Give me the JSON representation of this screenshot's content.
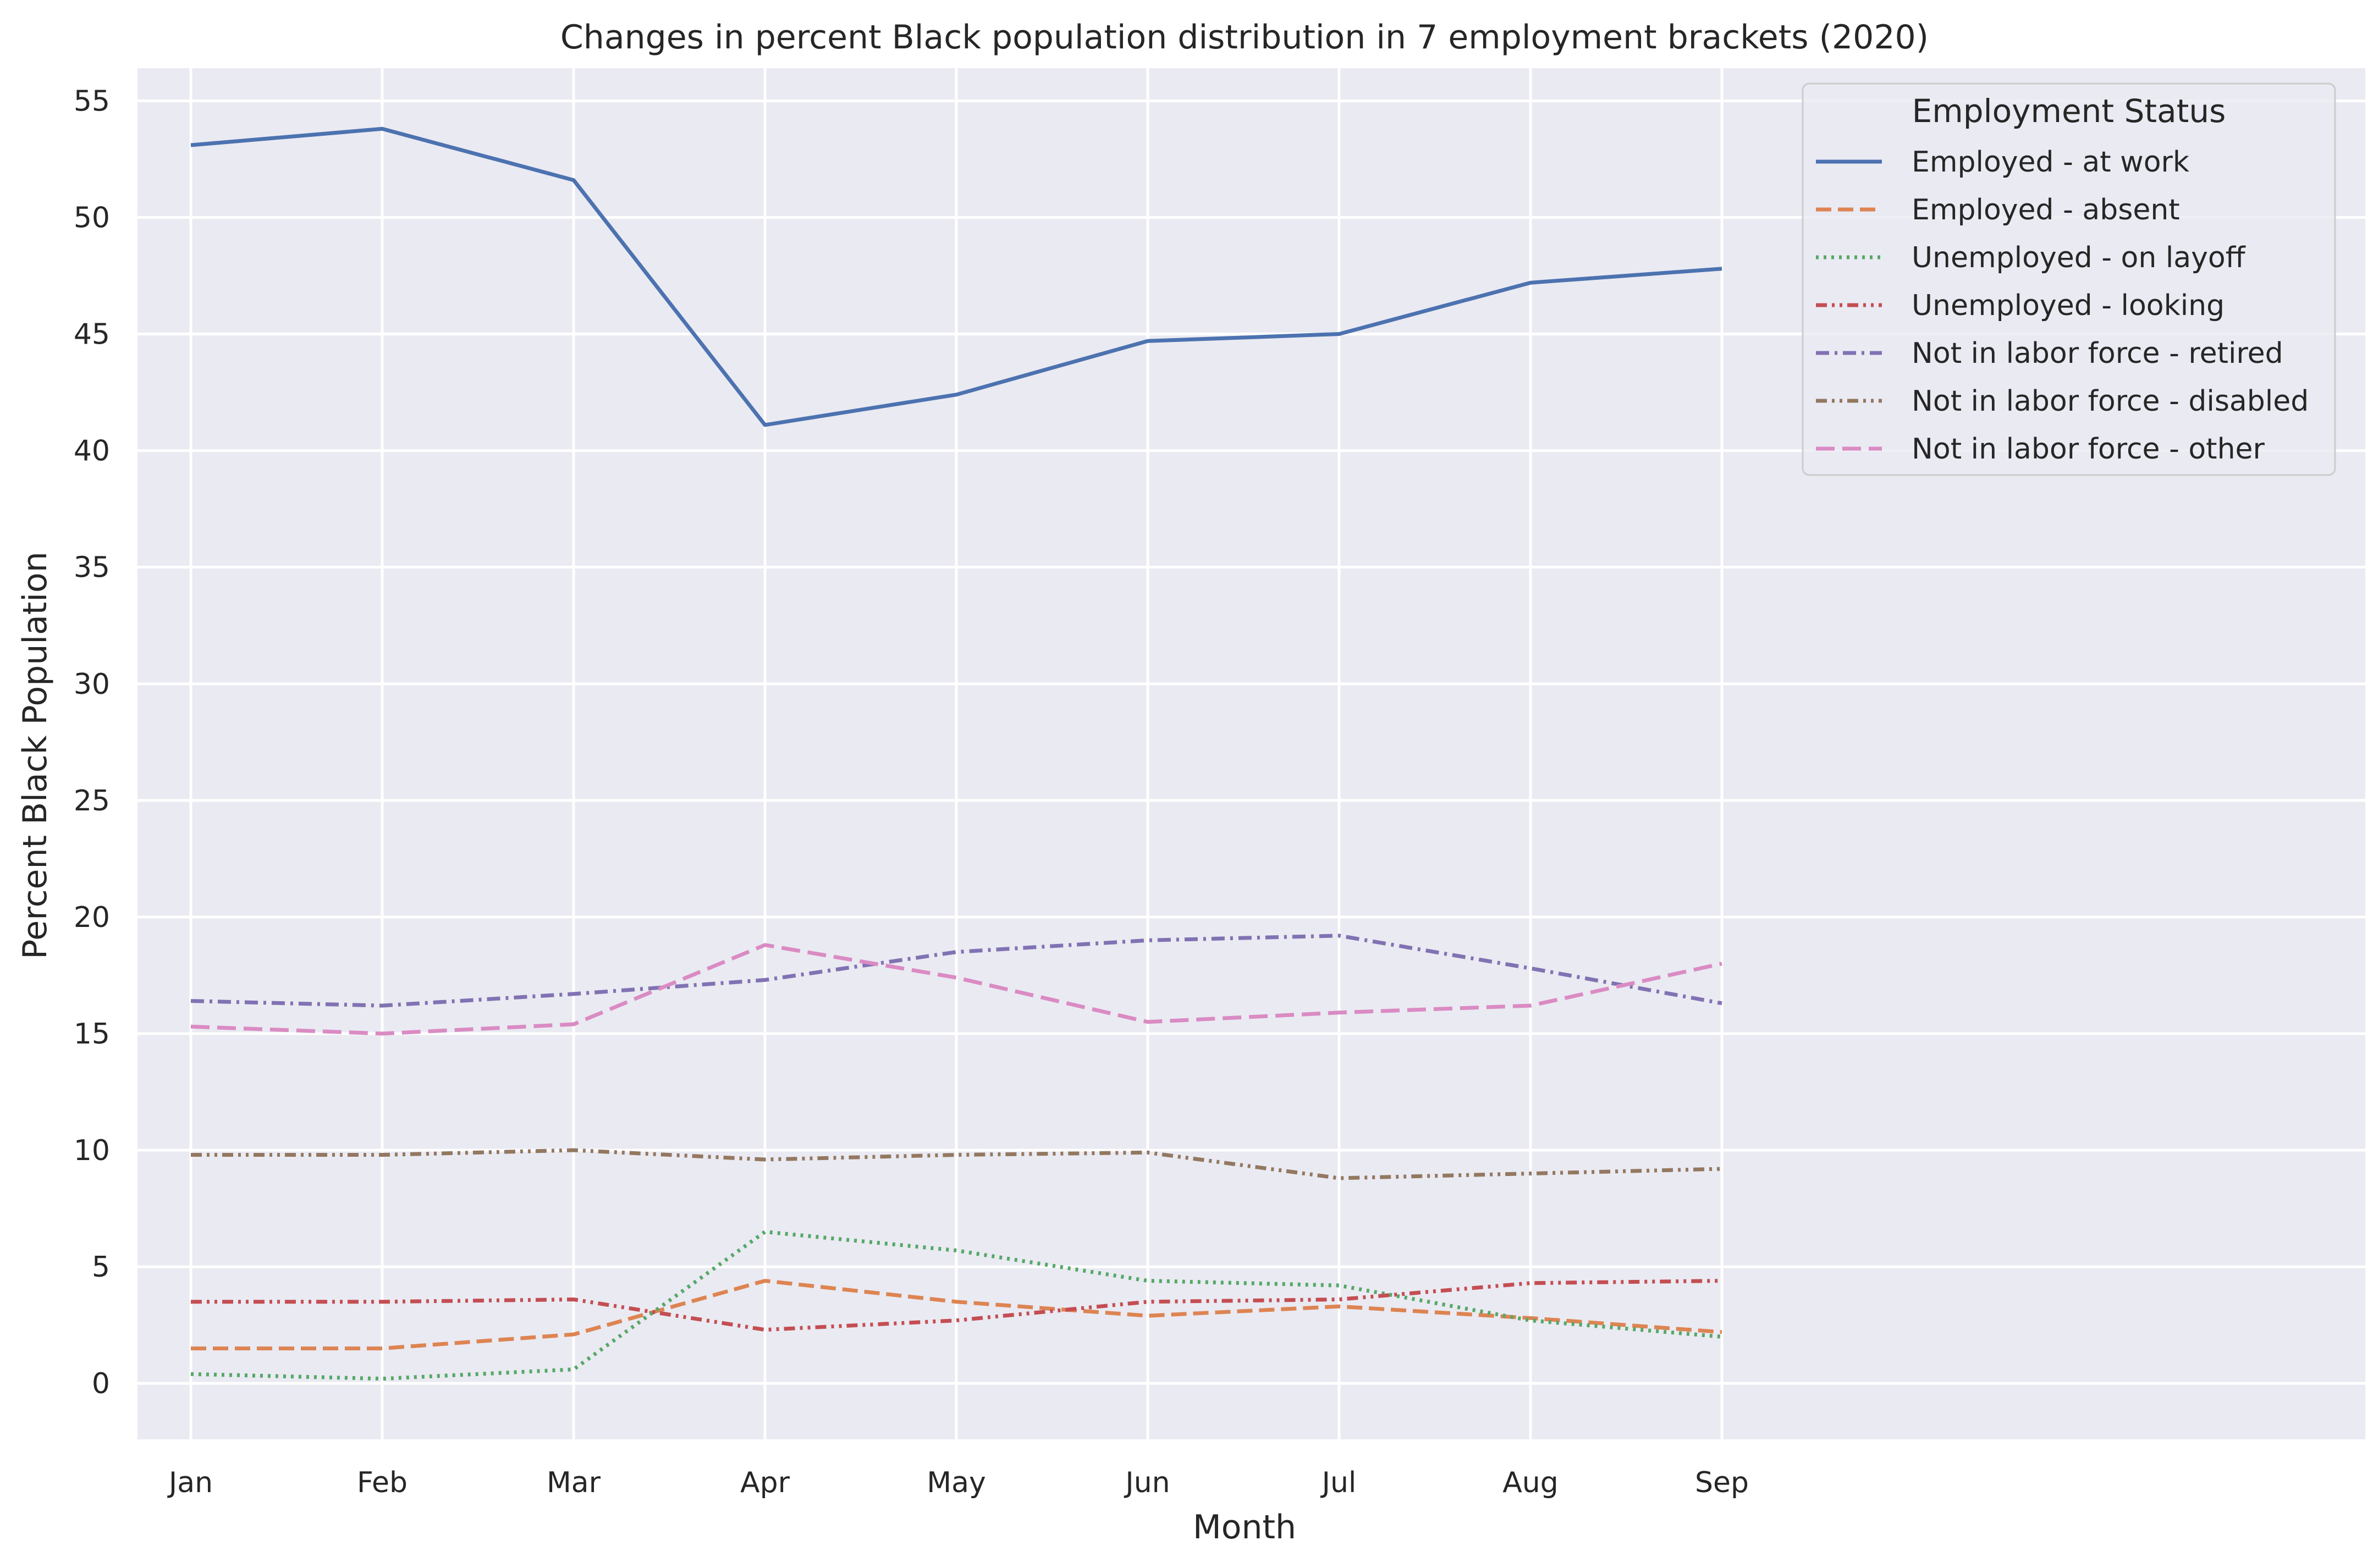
{
  "chart_data": {
    "type": "line",
    "title": "Changes in percent Black population distribution in 7 employment brackets (2020)",
    "xlabel": "Month",
    "ylabel": "Percent Black Population",
    "categories": [
      "Jan",
      "Feb",
      "Mar",
      "Apr",
      "May",
      "Jun",
      "Jul",
      "Aug",
      "Sep"
    ],
    "ylim": [
      -2.4,
      56.4
    ],
    "yticks": [
      0,
      5,
      10,
      15,
      20,
      25,
      30,
      35,
      40,
      45,
      50,
      55
    ],
    "yticks_labels": [
      "0",
      "5",
      "10",
      "15",
      "20",
      "25",
      "30",
      "35",
      "40",
      "45",
      "50",
      "55"
    ],
    "grid": true,
    "legend": {
      "title": "Employment Status",
      "placement": "top-right"
    },
    "series": [
      {
        "name": "Employed - at work",
        "color": "#4c72b0",
        "dash": "solid",
        "values": [
          53.1,
          53.8,
          51.6,
          41.1,
          42.4,
          44.7,
          45.0,
          47.2,
          47.8
        ]
      },
      {
        "name": "Employed - absent",
        "color": "#dd8452",
        "dash": "dashed",
        "values": [
          1.5,
          1.5,
          2.1,
          4.4,
          3.5,
          2.9,
          3.3,
          2.8,
          2.2
        ]
      },
      {
        "name": "Unemployed - on layoff",
        "color": "#55a868",
        "dash": "dotted",
        "values": [
          0.4,
          0.2,
          0.6,
          6.5,
          5.7,
          4.4,
          4.2,
          2.7,
          2.0
        ]
      },
      {
        "name": "Unemployed - looking",
        "color": "#c44e52",
        "dash": "dashdotdot",
        "values": [
          3.5,
          3.5,
          3.6,
          2.3,
          2.7,
          3.5,
          3.6,
          4.3,
          4.4
        ]
      },
      {
        "name": "Not in labor force - retired",
        "color": "#8172b3",
        "dash": "dashdot",
        "values": [
          16.4,
          16.2,
          16.7,
          17.3,
          18.5,
          19.0,
          19.2,
          17.8,
          16.3
        ]
      },
      {
        "name": "Not in labor force - disabled",
        "color": "#937860",
        "dash": "dashdotdot",
        "values": [
          9.8,
          9.8,
          10.0,
          9.6,
          9.8,
          9.9,
          8.8,
          9.0,
          9.2
        ]
      },
      {
        "name": "Not in labor force - other",
        "color": "#da8bc3",
        "dash": "longdash",
        "values": [
          15.3,
          15.0,
          15.4,
          18.8,
          17.4,
          15.5,
          15.9,
          16.2,
          18.0
        ]
      }
    ]
  }
}
